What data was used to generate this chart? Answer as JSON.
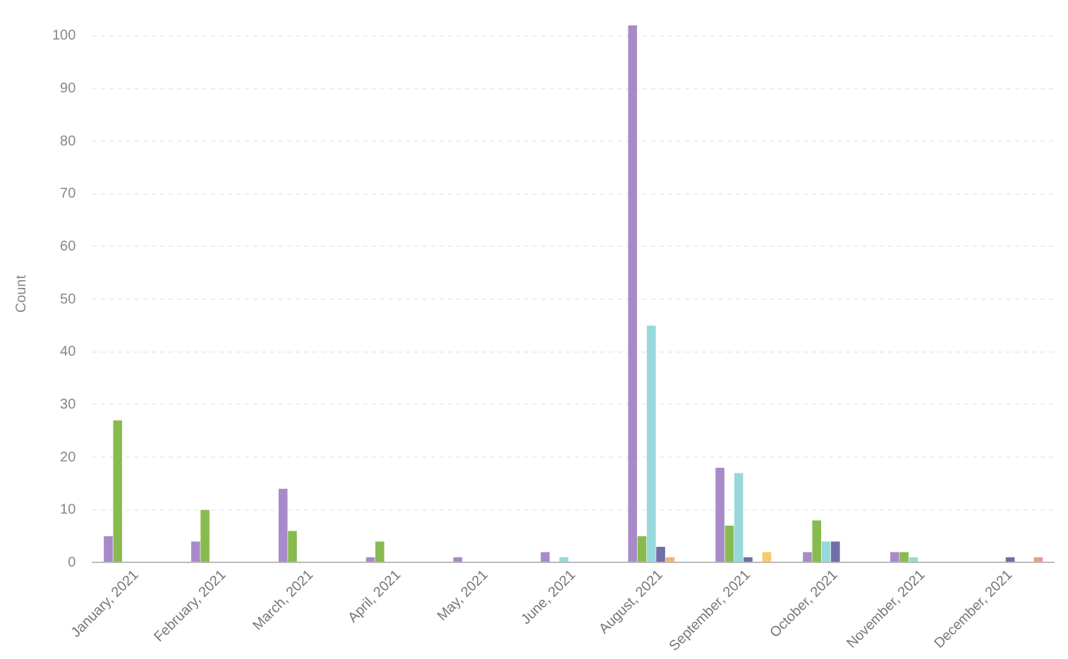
{
  "chart_data": {
    "type": "bar",
    "ylabel": "Count",
    "categories": [
      "January, 2021",
      "February, 2021",
      "March, 2021",
      "April, 2021",
      "May, 2021",
      "June, 2021",
      "August, 2021",
      "September, 2021",
      "October, 2021",
      "November, 2021",
      "December, 2021"
    ],
    "series": [
      {
        "color": "#a98ac9",
        "values": [
          5,
          4,
          14,
          1,
          1,
          2,
          102,
          18,
          2,
          2,
          null
        ]
      },
      {
        "color": "#88bb4f",
        "values": [
          27,
          10,
          6,
          4,
          null,
          null,
          5,
          7,
          8,
          2,
          null
        ]
      },
      {
        "color": "#98d8dc",
        "values": [
          null,
          null,
          null,
          null,
          null,
          1,
          45,
          17,
          4,
          1,
          null
        ]
      },
      {
        "color": "#6f6fa8",
        "values": [
          null,
          null,
          null,
          null,
          null,
          null,
          3,
          1,
          4,
          null,
          1
        ]
      },
      {
        "color": "#f2b27f",
        "values": [
          null,
          null,
          null,
          null,
          null,
          null,
          1,
          null,
          null,
          null,
          null
        ]
      },
      {
        "color": "#f7cb6a",
        "values": [
          null,
          null,
          null,
          null,
          null,
          null,
          null,
          2,
          null,
          null,
          null
        ]
      },
      {
        "color": "#ee9a8c",
        "values": [
          null,
          null,
          null,
          null,
          null,
          null,
          null,
          null,
          null,
          null,
          1
        ]
      }
    ],
    "ylim": [
      0,
      102
    ],
    "yticks": [
      0,
      10,
      20,
      30,
      40,
      50,
      60,
      70,
      80,
      90,
      100
    ],
    "grid": "y",
    "legend": false
  }
}
